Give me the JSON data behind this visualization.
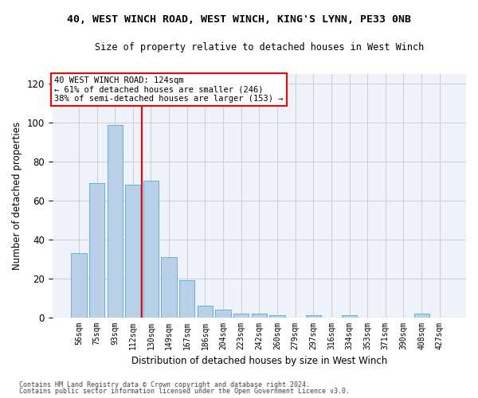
{
  "title1": "40, WEST WINCH ROAD, WEST WINCH, KING'S LYNN, PE33 0NB",
  "title2": "Size of property relative to detached houses in West Winch",
  "xlabel": "Distribution of detached houses by size in West Winch",
  "ylabel": "Number of detached properties",
  "bar_color": "#b8d0e8",
  "bar_edge_color": "#6aaed6",
  "categories": [
    "56sqm",
    "75sqm",
    "93sqm",
    "112sqm",
    "130sqm",
    "149sqm",
    "167sqm",
    "186sqm",
    "204sqm",
    "223sqm",
    "242sqm",
    "260sqm",
    "279sqm",
    "297sqm",
    "316sqm",
    "334sqm",
    "353sqm",
    "371sqm",
    "390sqm",
    "408sqm",
    "427sqm"
  ],
  "values": [
    33,
    69,
    99,
    68,
    70,
    31,
    19,
    6,
    4,
    2,
    2,
    1,
    0,
    1,
    0,
    1,
    0,
    0,
    0,
    2,
    0
  ],
  "red_line_x": 3.5,
  "annotation_text": "40 WEST WINCH ROAD: 124sqm\n← 61% of detached houses are smaller (246)\n38% of semi-detached houses are larger (153) →",
  "annotation_box_color": "white",
  "annotation_box_edge": "red",
  "ylim": [
    0,
    125
  ],
  "yticks": [
    0,
    20,
    40,
    60,
    80,
    100,
    120
  ],
  "grid_color": "#d0d0d0",
  "background_color": "#eef2fa",
  "footer1": "Contains HM Land Registry data © Crown copyright and database right 2024.",
  "footer2": "Contains public sector information licensed under the Open Government Licence v3.0."
}
